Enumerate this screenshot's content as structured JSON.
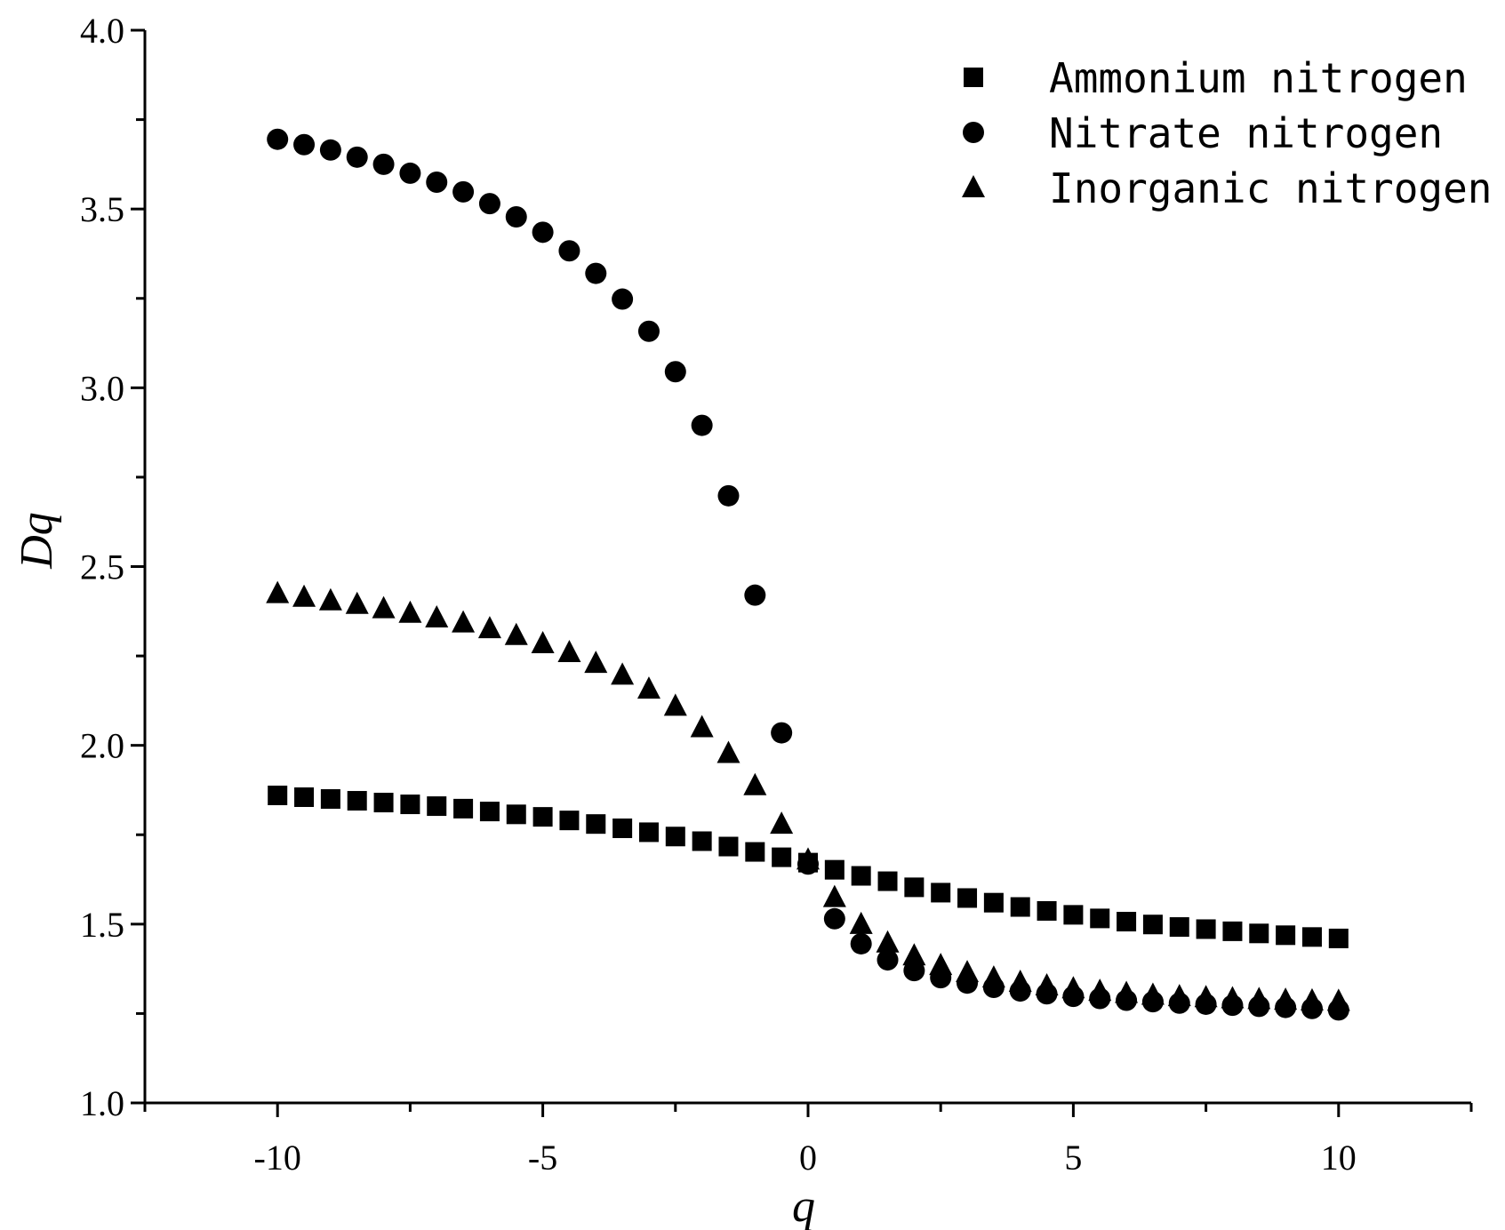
{
  "chart_data": {
    "type": "scatter",
    "title": "",
    "xlabel": "q",
    "ylabel": "Dq",
    "xlim": [
      -12.5,
      12.5
    ],
    "ylim": [
      1.0,
      4.0
    ],
    "x_ticks": [
      -10,
      -5,
      0,
      5,
      10
    ],
    "x_tick_labels": [
      "-10",
      "-5",
      "0",
      "5",
      "10"
    ],
    "y_ticks": [
      1.0,
      1.5,
      2.0,
      2.5,
      3.0,
      3.5,
      4.0
    ],
    "y_tick_labels": [
      "1.0",
      "1.5",
      "2.0",
      "2.5",
      "3.0",
      "3.5",
      "4.0"
    ],
    "grid": false,
    "legend_position": "top-right",
    "x": [
      -10,
      -9.5,
      -9,
      -8.5,
      -8,
      -7.5,
      -7,
      -6.5,
      -6,
      -5.5,
      -5,
      -4.5,
      -4,
      -3.5,
      -3,
      -2.5,
      -2,
      -1.5,
      -1,
      -0.5,
      0,
      0.5,
      1,
      1.5,
      2,
      2.5,
      3,
      3.5,
      4,
      4.5,
      5,
      5.5,
      6,
      6.5,
      7,
      7.5,
      8,
      8.5,
      9,
      9.5,
      10
    ],
    "series": [
      {
        "name": "Ammonium nitrogen",
        "marker": "square",
        "values": [
          1.86,
          1.855,
          1.85,
          1.845,
          1.84,
          1.835,
          1.83,
          1.823,
          1.815,
          1.807,
          1.8,
          1.79,
          1.78,
          1.768,
          1.757,
          1.745,
          1.732,
          1.717,
          1.702,
          1.687,
          1.672,
          1.652,
          1.635,
          1.62,
          1.603,
          1.588,
          1.573,
          1.56,
          1.548,
          1.537,
          1.526,
          1.516,
          1.507,
          1.499,
          1.492,
          1.486,
          1.48,
          1.474,
          1.469,
          1.464,
          1.46
        ]
      },
      {
        "name": "Nitrate nitrogen",
        "marker": "circle",
        "values": [
          3.695,
          3.68,
          3.665,
          3.645,
          3.625,
          3.6,
          3.575,
          3.548,
          3.515,
          3.478,
          3.435,
          3.383,
          3.32,
          3.248,
          3.158,
          3.045,
          2.895,
          2.698,
          2.42,
          2.035,
          1.668,
          1.515,
          1.445,
          1.4,
          1.37,
          1.35,
          1.335,
          1.323,
          1.313,
          1.305,
          1.298,
          1.292,
          1.287,
          1.283,
          1.279,
          1.276,
          1.273,
          1.27,
          1.267,
          1.264,
          1.26
        ]
      },
      {
        "name": "Inorganic nitrogen",
        "marker": "triangle",
        "values": [
          2.425,
          2.415,
          2.405,
          2.395,
          2.383,
          2.37,
          2.357,
          2.343,
          2.327,
          2.308,
          2.285,
          2.26,
          2.23,
          2.197,
          2.158,
          2.11,
          2.05,
          1.978,
          1.888,
          1.78,
          1.68,
          1.575,
          1.5,
          1.448,
          1.412,
          1.385,
          1.365,
          1.35,
          1.338,
          1.328,
          1.32,
          1.313,
          1.307,
          1.302,
          1.298,
          1.295,
          1.292,
          1.29,
          1.288,
          1.286,
          1.285
        ]
      }
    ]
  }
}
